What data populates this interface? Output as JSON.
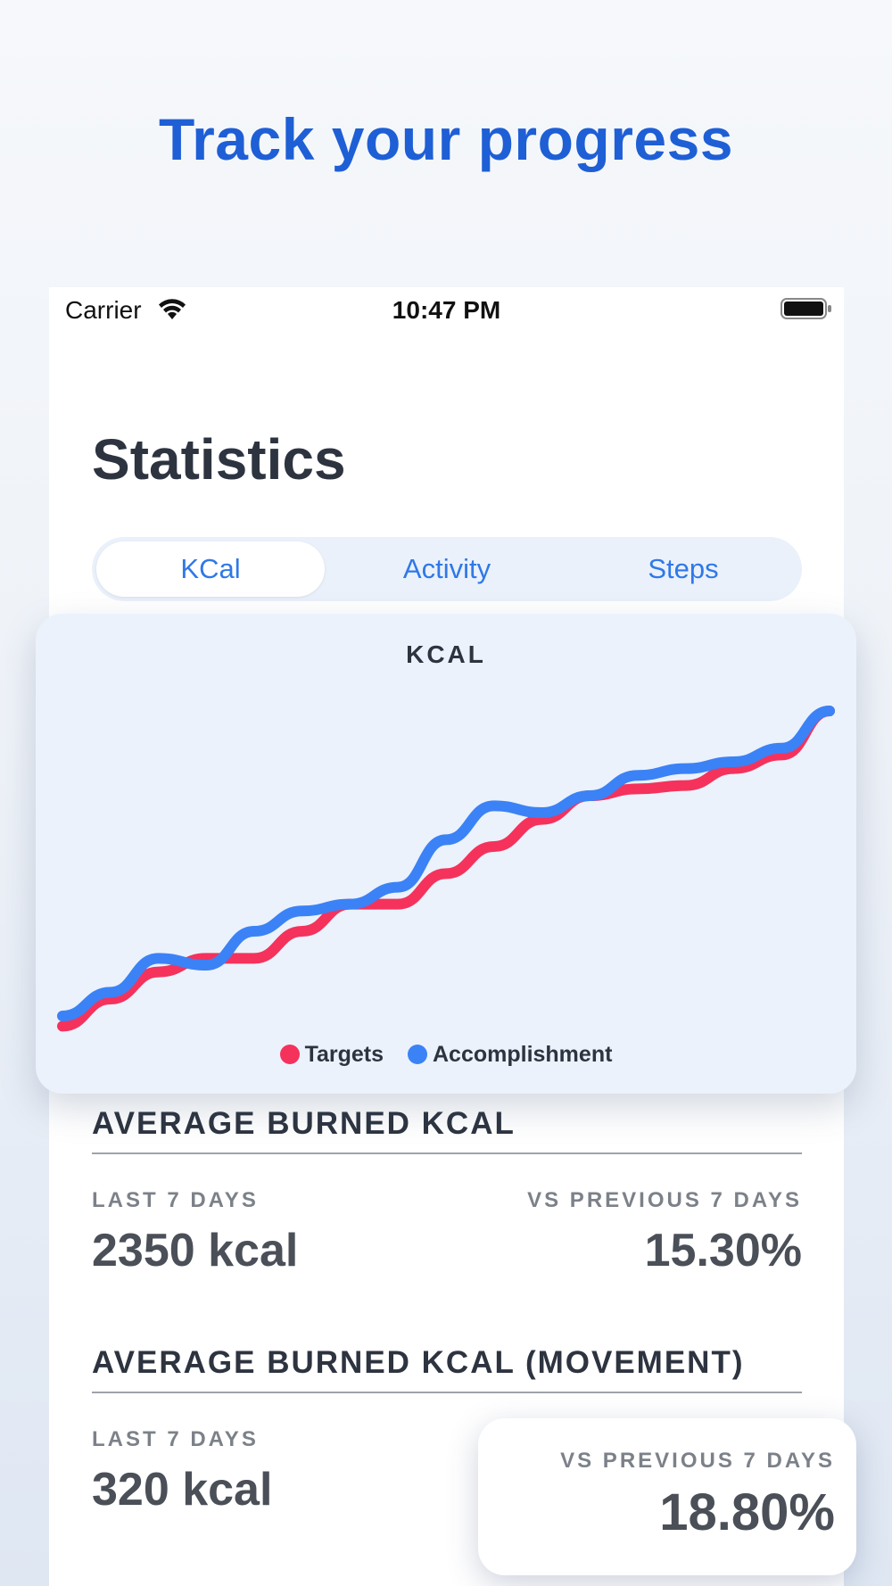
{
  "promo": {
    "title": "Track your progress"
  },
  "status_bar": {
    "carrier": "Carrier",
    "time": "10:47 PM",
    "wifi_icon": "wifi-icon",
    "battery_icon": "battery-icon"
  },
  "screen": {
    "title": "Statistics",
    "tabs": [
      {
        "label": "KCal",
        "selected": true
      },
      {
        "label": "Activity",
        "selected": false
      },
      {
        "label": "Steps",
        "selected": false
      }
    ]
  },
  "chart_card": {
    "legend": [
      {
        "label": "Targets",
        "color": "#f5325c"
      },
      {
        "label": "Accomplishment",
        "color": "#3b82f6"
      }
    ]
  },
  "chart_data": {
    "type": "line",
    "title": "KCAL",
    "xlabel": "",
    "ylabel": "",
    "grid": false,
    "legend_position": "bottom",
    "x": [
      0,
      1,
      2,
      3,
      4,
      5,
      6,
      7,
      8,
      9,
      10,
      11,
      12,
      13,
      14,
      15,
      16
    ],
    "series": [
      {
        "name": "Targets",
        "color": "#f5325c",
        "values": [
          2,
          10,
          18,
          22,
          22,
          30,
          38,
          38,
          47,
          55,
          63,
          70,
          72,
          73,
          78,
          82,
          95
        ]
      },
      {
        "name": "Accomplishment",
        "color": "#3b82f6",
        "values": [
          5,
          12,
          22,
          20,
          30,
          36,
          38,
          43,
          57,
          67,
          65,
          70,
          76,
          78,
          80,
          84,
          95
        ]
      }
    ]
  },
  "stats": {
    "avg_burned": {
      "heading": "AVERAGE BURNED KCAL",
      "last_label": "LAST 7 DAYS",
      "last_value": "2350 kcal",
      "vs_label": "VS PREVIOUS 7 DAYS",
      "vs_value": "15.30%"
    },
    "avg_movement": {
      "heading": "AVERAGE BURNED KCAL (MOVEMENT)",
      "last_label": "LAST 7 DAYS",
      "last_value": "320 kcal",
      "vs_label": "VS PREVIOUS 7 DAYS",
      "vs_value": "18.80%"
    }
  }
}
